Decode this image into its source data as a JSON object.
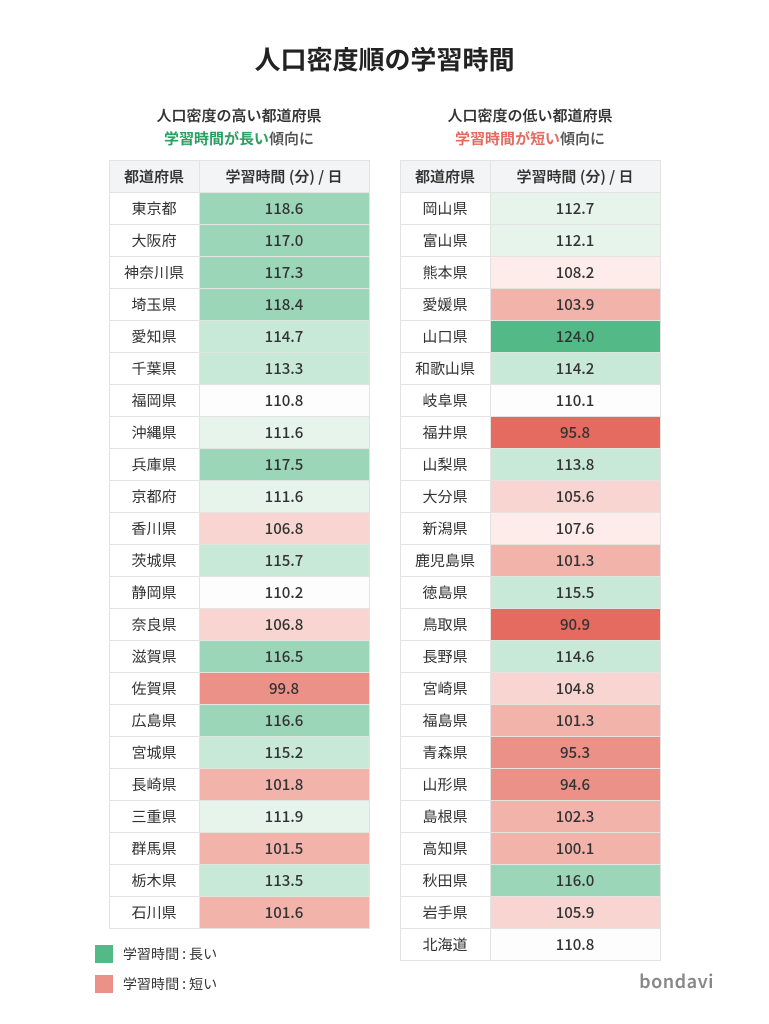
{
  "title": "人口密度順の学習時間",
  "colors": {
    "green_strong": "#53b986",
    "green_med": "#9cd6b8",
    "green_light": "#c9e9d8",
    "green_vlight": "#e6f4ec",
    "white": "#fdfdfd",
    "pink_vlight": "#fdecea",
    "pink_light": "#f8d5d1",
    "pink_med": "#f2b3ab",
    "red_med": "#ec9187",
    "red_strong": "#e56a5f",
    "header_bg": "#f3f4f5",
    "border": "#e3e3e3",
    "text": "#333333",
    "accent_green_text": "#28a060",
    "accent_red_text": "#e56a5f",
    "brand_text": "#888888"
  },
  "high": {
    "heading_line1": "人口密度の高い都道府県",
    "heading_accent": "学習時間が長い",
    "heading_line2_suffix": "傾向に",
    "header_pref": "都道府県",
    "header_val": "学習時間 (分) / 日",
    "rows": [
      {
        "pref": "東京都",
        "val": "118.6",
        "bg": "#9cd6b8"
      },
      {
        "pref": "大阪府",
        "val": "117.0",
        "bg": "#9cd6b8"
      },
      {
        "pref": "神奈川県",
        "val": "117.3",
        "bg": "#9cd6b8"
      },
      {
        "pref": "埼玉県",
        "val": "118.4",
        "bg": "#9cd6b8"
      },
      {
        "pref": "愛知県",
        "val": "114.7",
        "bg": "#c9e9d8"
      },
      {
        "pref": "千葉県",
        "val": "113.3",
        "bg": "#c9e9d8"
      },
      {
        "pref": "福岡県",
        "val": "110.8",
        "bg": "#fdfdfd"
      },
      {
        "pref": "沖縄県",
        "val": "111.6",
        "bg": "#e6f4ec"
      },
      {
        "pref": "兵庫県",
        "val": "117.5",
        "bg": "#9cd6b8"
      },
      {
        "pref": "京都府",
        "val": "111.6",
        "bg": "#e6f4ec"
      },
      {
        "pref": "香川県",
        "val": "106.8",
        "bg": "#f8d5d1"
      },
      {
        "pref": "茨城県",
        "val": "115.7",
        "bg": "#c9e9d8"
      },
      {
        "pref": "静岡県",
        "val": "110.2",
        "bg": "#fdfdfd"
      },
      {
        "pref": "奈良県",
        "val": "106.8",
        "bg": "#f8d5d1"
      },
      {
        "pref": "滋賀県",
        "val": "116.5",
        "bg": "#9cd6b8"
      },
      {
        "pref": "佐賀県",
        "val": "99.8",
        "bg": "#ec9187"
      },
      {
        "pref": "広島県",
        "val": "116.6",
        "bg": "#9cd6b8"
      },
      {
        "pref": "宮城県",
        "val": "115.2",
        "bg": "#c9e9d8"
      },
      {
        "pref": "長崎県",
        "val": "101.8",
        "bg": "#f2b3ab"
      },
      {
        "pref": "三重県",
        "val": "111.9",
        "bg": "#e6f4ec"
      },
      {
        "pref": "群馬県",
        "val": "101.5",
        "bg": "#f2b3ab"
      },
      {
        "pref": "栃木県",
        "val": "113.5",
        "bg": "#c9e9d8"
      },
      {
        "pref": "石川県",
        "val": "101.6",
        "bg": "#f2b3ab"
      }
    ]
  },
  "low": {
    "heading_line1": "人口密度の低い都道府県",
    "heading_accent": "学習時間が短い",
    "heading_line2_suffix": "傾向に",
    "header_pref": "都道府県",
    "header_val": "学習時間 (分) / 日",
    "rows": [
      {
        "pref": "岡山県",
        "val": "112.7",
        "bg": "#e6f4ec"
      },
      {
        "pref": "富山県",
        "val": "112.1",
        "bg": "#e6f4ec"
      },
      {
        "pref": "熊本県",
        "val": "108.2",
        "bg": "#fdecea"
      },
      {
        "pref": "愛媛県",
        "val": "103.9",
        "bg": "#f2b3ab"
      },
      {
        "pref": "山口県",
        "val": "124.0",
        "bg": "#53b986"
      },
      {
        "pref": "和歌山県",
        "val": "114.2",
        "bg": "#c9e9d8"
      },
      {
        "pref": "岐阜県",
        "val": "110.1",
        "bg": "#fdfdfd"
      },
      {
        "pref": "福井県",
        "val": "95.8",
        "bg": "#e56a5f"
      },
      {
        "pref": "山梨県",
        "val": "113.8",
        "bg": "#c9e9d8"
      },
      {
        "pref": "大分県",
        "val": "105.6",
        "bg": "#f8d5d1"
      },
      {
        "pref": "新潟県",
        "val": "107.6",
        "bg": "#fdecea"
      },
      {
        "pref": "鹿児島県",
        "val": "101.3",
        "bg": "#f2b3ab"
      },
      {
        "pref": "徳島県",
        "val": "115.5",
        "bg": "#c9e9d8"
      },
      {
        "pref": "鳥取県",
        "val": "90.9",
        "bg": "#e56a5f"
      },
      {
        "pref": "長野県",
        "val": "114.6",
        "bg": "#c9e9d8"
      },
      {
        "pref": "宮崎県",
        "val": "104.8",
        "bg": "#f8d5d1"
      },
      {
        "pref": "福島県",
        "val": "101.3",
        "bg": "#f2b3ab"
      },
      {
        "pref": "青森県",
        "val": "95.3",
        "bg": "#ec9187"
      },
      {
        "pref": "山形県",
        "val": "94.6",
        "bg": "#ec9187"
      },
      {
        "pref": "島根県",
        "val": "102.3",
        "bg": "#f2b3ab"
      },
      {
        "pref": "高知県",
        "val": "100.1",
        "bg": "#f2b3ab"
      },
      {
        "pref": "秋田県",
        "val": "116.0",
        "bg": "#9cd6b8"
      },
      {
        "pref": "岩手県",
        "val": "105.9",
        "bg": "#f8d5d1"
      },
      {
        "pref": "北海道",
        "val": "110.8",
        "bg": "#fdfdfd"
      }
    ]
  },
  "legend": {
    "long_label": "学習時間 : 長い",
    "long_color": "#53b986",
    "short_label": "学習時間 : 短い",
    "short_color": "#ec9187"
  },
  "brand": "bondavi"
}
